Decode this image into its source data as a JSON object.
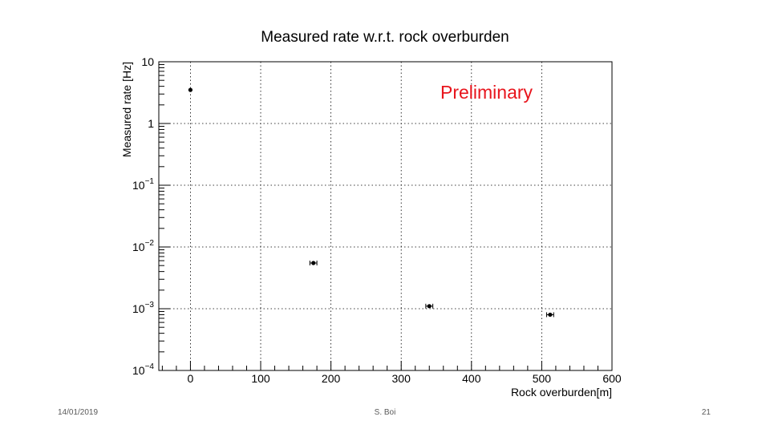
{
  "slide": {
    "footer_date": "14/01/2019",
    "footer_author": "S. Boi",
    "footer_page": "21"
  },
  "chart_data": {
    "type": "scatter",
    "title": "Measured rate w.r.t. rock overburden",
    "xlabel": "Rock overburden[m]",
    "ylabel": "Measured rate [Hz]",
    "xlim": [
      -45,
      600
    ],
    "ylim": [
      0.0001,
      10
    ],
    "yscale": "log",
    "grid": true,
    "x_ticks": [
      "0",
      "100",
      "200",
      "300",
      "400",
      "500",
      "600"
    ],
    "x_tick_values": [
      0,
      100,
      200,
      300,
      400,
      500,
      600
    ],
    "y_ticks": [
      {
        "base": "10",
        "exp": ""
      },
      {
        "base": "1",
        "exp": ""
      },
      {
        "base": "10",
        "exp": "−1"
      },
      {
        "base": "10",
        "exp": "−2"
      },
      {
        "base": "10",
        "exp": "−3"
      },
      {
        "base": "10",
        "exp": "−4"
      }
    ],
    "y_tick_values": [
      10,
      1,
      0.1,
      0.01,
      0.001,
      0.0001
    ],
    "series": [
      {
        "points": [
          {
            "x": 0,
            "y": 3.5,
            "xerr": 0
          },
          {
            "x": 175,
            "y": 0.0055,
            "xerr": 5
          },
          {
            "x": 340,
            "y": 0.0011,
            "xerr": 5
          },
          {
            "x": 512,
            "y": 0.0008,
            "xerr": 5
          }
        ],
        "color": "#000000"
      }
    ],
    "annotation": {
      "text": "Preliminary",
      "color": "#e8141c"
    }
  }
}
